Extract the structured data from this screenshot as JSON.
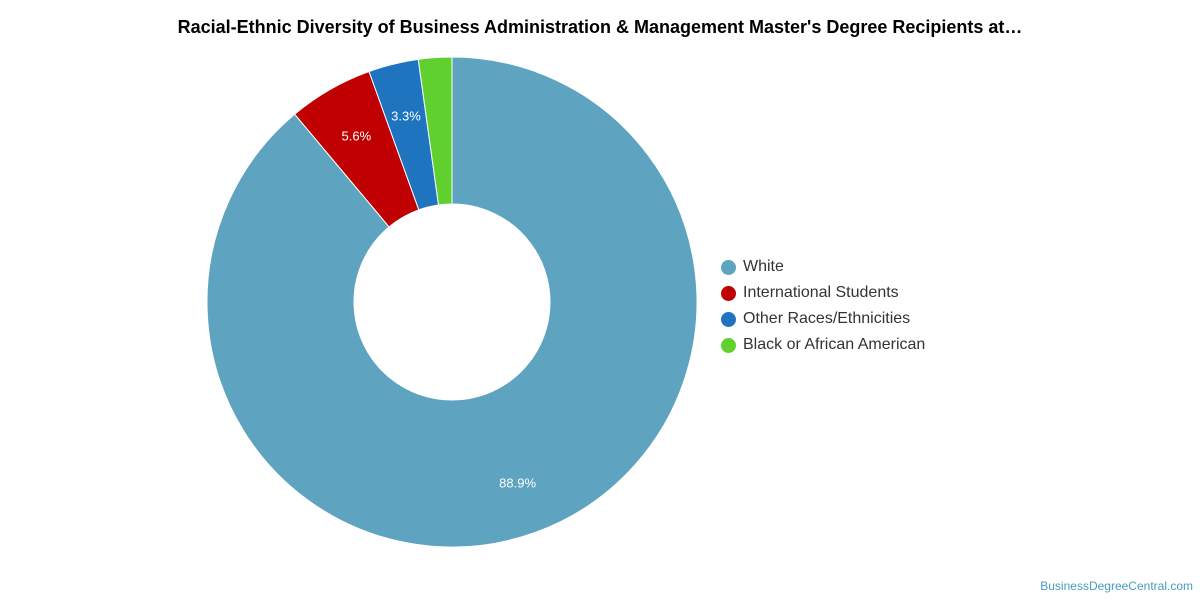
{
  "colors": {
    "white": "#5ea3bf",
    "international": "#c00000",
    "other": "#1f74c0",
    "black": "#5fd02e"
  },
  "chart_data": {
    "type": "pie",
    "title": "Racial-Ethnic Diversity of Business Administration & Management Master's Degree Recipients at…",
    "donut": true,
    "legend_position": "right",
    "series": [
      {
        "name": "White",
        "value": 88.9,
        "label": "88.9%",
        "color": "#5ea3bf"
      },
      {
        "name": "International Students",
        "value": 5.6,
        "label": "5.6%",
        "color": "#c00000"
      },
      {
        "name": "Other Races/Ethnicities",
        "value": 3.3,
        "label": "3.3%",
        "color": "#1f74c0"
      },
      {
        "name": "Black or African American",
        "value": 2.2,
        "label": "",
        "color": "#5fd02e"
      }
    ]
  },
  "source": "BusinessDegreeCentral.com"
}
